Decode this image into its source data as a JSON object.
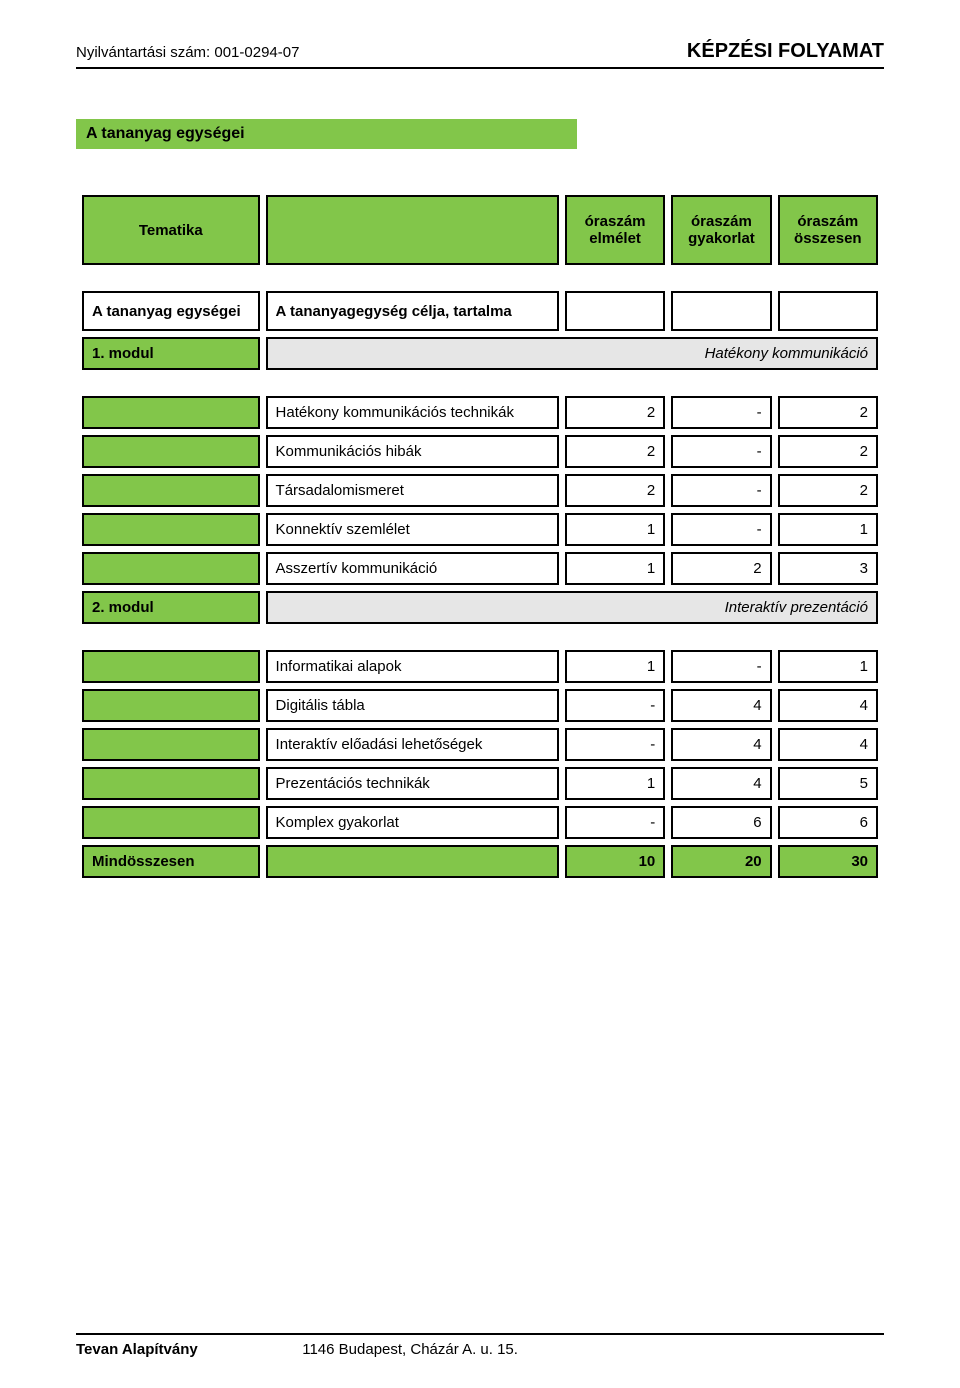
{
  "header": {
    "reg_label": "Nyilvántartási szám: 001-0294-07",
    "title": "KÉPZÉSI FOLYAMAT"
  },
  "section_title": "A tananyag egységei",
  "columns": {
    "tematika": "Tematika",
    "c_elmelet_l1": "óraszám",
    "c_elmelet_l2": "elmélet",
    "c_gyak_l1": "óraszám",
    "c_gyak_l2": "gyakorlat",
    "c_ossz_l1": "óraszám",
    "c_ossz_l2": "összesen"
  },
  "units_row": {
    "left": "A tananyag egységei",
    "right": "A tananyagegység célja, tartalma"
  },
  "mod1": {
    "label": "1. modul",
    "title": "Hatékony kommunikáció"
  },
  "mod2": {
    "label": "2. modul",
    "title": "Interaktív prezentáció"
  },
  "rows1": [
    {
      "name": "Hatékony kommunikációs technikák",
      "a": "2",
      "b": "-",
      "c": "2"
    },
    {
      "name": "Kommunikációs hibák",
      "a": "2",
      "b": "-",
      "c": "2"
    },
    {
      "name": "Társadalomismeret",
      "a": "2",
      "b": "-",
      "c": "2"
    },
    {
      "name": "Konnektív szemlélet",
      "a": "1",
      "b": "-",
      "c": "1"
    },
    {
      "name": "Asszertív kommunikáció",
      "a": "1",
      "b": "2",
      "c": "3"
    }
  ],
  "rows2": [
    {
      "name": "Informatikai alapok",
      "a": "1",
      "b": "-",
      "c": "1"
    },
    {
      "name": "Digitális tábla",
      "a": "-",
      "b": "4",
      "c": "4"
    },
    {
      "name": "Interaktív előadási lehetőségek",
      "a": "-",
      "b": "4",
      "c": "4"
    },
    {
      "name": "Prezentációs technikák",
      "a": "1",
      "b": "4",
      "c": "5"
    },
    {
      "name": "Komplex gyakorlat",
      "a": "-",
      "b": "6",
      "c": "6"
    }
  ],
  "total": {
    "label": "Mindösszesen",
    "a": "10",
    "b": "20",
    "c": "30"
  },
  "footer": {
    "org": "Tevan Alapítvány",
    "addr": "1146 Budapest, Cházár A. u. 15."
  }
}
